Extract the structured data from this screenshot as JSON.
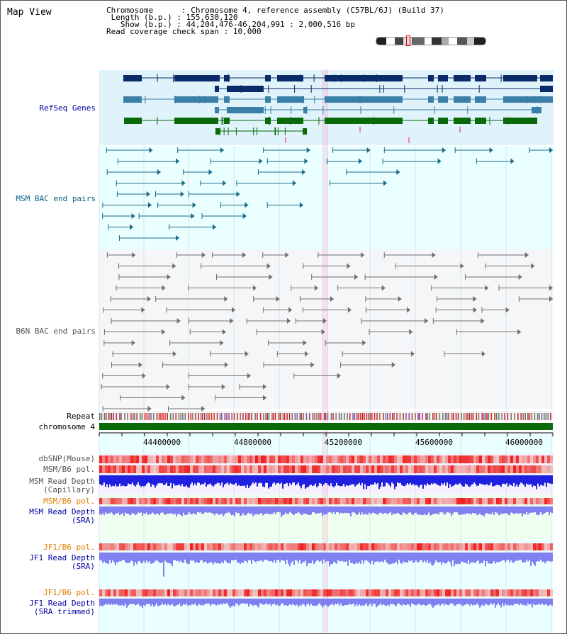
{
  "view": {
    "title": "Map View",
    "chromosome_label": "Chromosome",
    "chromosome_value": "Chromosome 4, reference assembly (C57BL/6J) (Build 37)",
    "length_label": "Length (b.p.)",
    "length_value": "155,630,120",
    "show_label": "Show (b.p.)",
    "show_value": "44,204,476-46,204,991 : 2,000,516 bp",
    "coverage_label": "Read coverage check span",
    "coverage_value": "10,000"
  },
  "tracks": {
    "refseq": "RefSeq Genes",
    "msm_bac": "MSM BAC end pairs",
    "b6n_bac": "B6N BAC end pairs",
    "repeat": "Repeat",
    "chromosome": "chromosome 4",
    "dbsnp": "dbSNP(Mouse)",
    "msm_b6_pol_1": "MSM/B6 pol.",
    "msm_depth_cap_1": "MSM Read Depth",
    "msm_depth_cap_2": "(Capillary)",
    "msm_b6_pol_2": "MSM/B6 pol.",
    "msm_depth_sra_1": "MSM Read Depth",
    "msm_depth_sra_2": "(SRA)",
    "jf1_b6_pol_1": "JF1/B6 pol.",
    "jf1_depth_sra_1": "JF1 Read Depth",
    "jf1_depth_sra_2": "(SRA)",
    "jf1_b6_pol_2": "JF1/B6 pol.",
    "jf1_depth_trim_1": "JF1 Read Depth",
    "jf1_depth_trim_2": "(SRA trimmed)"
  },
  "axis": {
    "ticks": [
      "44400000",
      "44800000",
      "45200000",
      "45600000",
      "46000000"
    ]
  },
  "colors": {
    "refseq_bg": "#e0f2fa",
    "msm_bg": "#eaffff",
    "b6n_bg": "#f6f6f8",
    "gene_dark": "#0a2a6a",
    "gene_mid": "#3a7fa8",
    "gene_green": "#0a6a0a",
    "chromosome": "#0a6a0a",
    "depth_blue": "#2020e0",
    "depth_light": "#8080f0",
    "label_blue": "#0000a0",
    "label_orange": "#e08000",
    "label_teal": "#006080"
  }
}
